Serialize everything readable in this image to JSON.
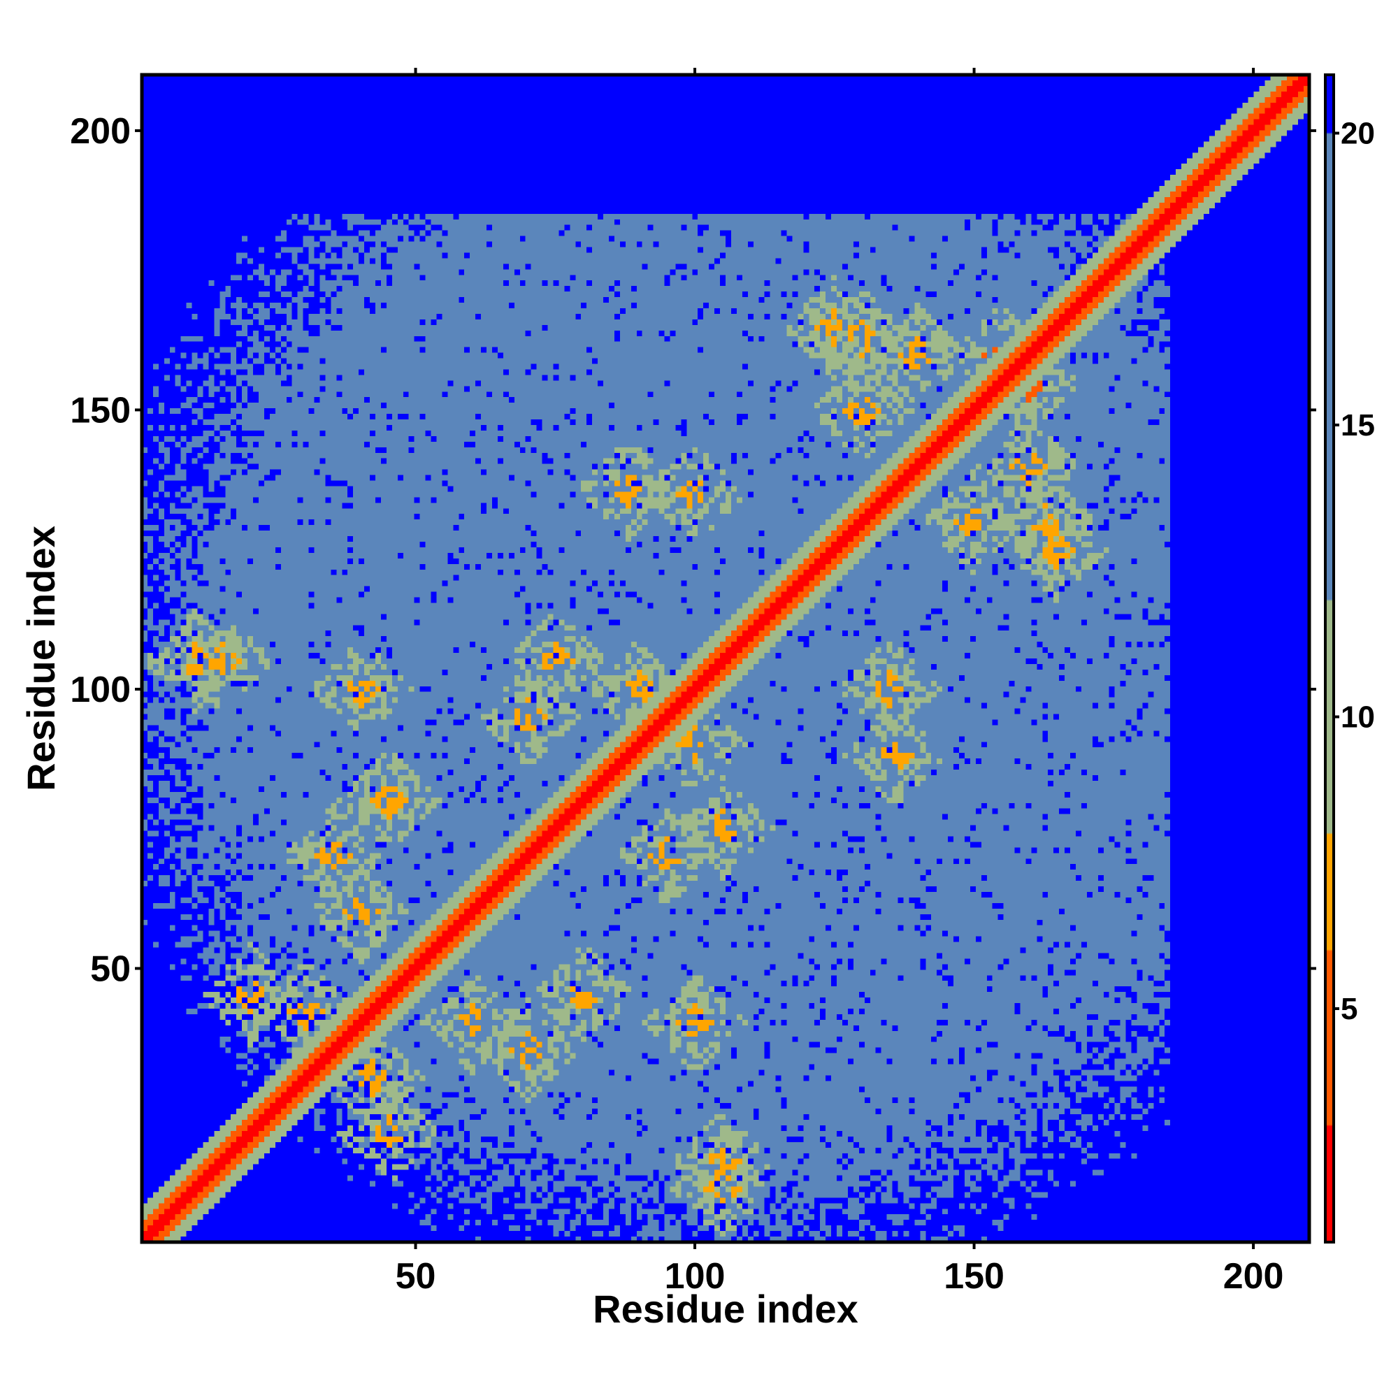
{
  "chart_data": {
    "type": "heatmap",
    "title": "",
    "xlabel": "Residue index",
    "ylabel": "Residue index",
    "xlim": [
      1,
      210
    ],
    "ylim": [
      1,
      210
    ],
    "x_ticks": [
      50,
      100,
      150,
      200
    ],
    "y_ticks": [
      50,
      100,
      150,
      200
    ],
    "colorbar": {
      "range": [
        1,
        21
      ],
      "ticks": [
        5,
        10,
        15,
        20
      ],
      "bands": [
        {
          "min": 0,
          "max": 3,
          "color": "#ff0000"
        },
        {
          "min": 3,
          "max": 6,
          "color": "#ff5a00"
        },
        {
          "min": 6,
          "max": 8,
          "color": "#ffa500"
        },
        {
          "min": 8,
          "max": 12,
          "color": "#9fb98a"
        },
        {
          "min": 12,
          "max": 20,
          "color": "#5b86bb"
        },
        {
          "min": 20,
          "max": 99,
          "color": "#0000ff"
        }
      ]
    },
    "description_values": {
      "diagonal_value": 0,
      "near_diagonal_width": 4,
      "background_value": 16,
      "far_value": 22
    },
    "contact_clusters": [
      {
        "i": 30,
        "j": 42,
        "v": 6
      },
      {
        "i": 35,
        "j": 70,
        "v": 6
      },
      {
        "i": 45,
        "j": 80,
        "v": 7
      },
      {
        "i": 40,
        "j": 60,
        "v": 7
      },
      {
        "i": 20,
        "j": 45,
        "v": 6
      },
      {
        "i": 70,
        "j": 95,
        "v": 6
      },
      {
        "i": 90,
        "j": 100,
        "v": 6
      },
      {
        "i": 100,
        "j": 135,
        "v": 7
      },
      {
        "i": 88,
        "j": 136,
        "v": 7
      },
      {
        "i": 75,
        "j": 105,
        "v": 7
      },
      {
        "i": 125,
        "j": 165,
        "v": 6
      },
      {
        "i": 130,
        "j": 150,
        "v": 6
      },
      {
        "i": 140,
        "j": 160,
        "v": 6
      },
      {
        "i": 160,
        "j": 155,
        "v": 5
      },
      {
        "i": 130,
        "j": 163,
        "v": 6
      },
      {
        "i": 105,
        "j": 10,
        "v": 7
      },
      {
        "i": 100,
        "j": 40,
        "v": 7
      },
      {
        "i": 105,
        "j": 15,
        "v": 7
      }
    ]
  }
}
